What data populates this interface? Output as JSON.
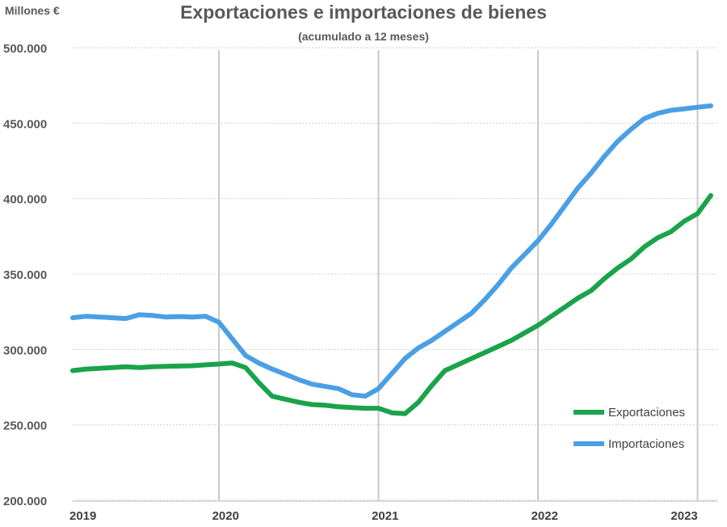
{
  "chart_data": {
    "type": "line",
    "title": "Exportaciones e importaciones de bienes",
    "subtitle": "(acumulado a 12 meses)",
    "ylabel": "Millones €",
    "xlabel": "",
    "ylim": [
      200000,
      500000
    ],
    "yticks": [
      200000,
      250000,
      300000,
      350000,
      400000,
      450000,
      500000
    ],
    "ytick_labels": [
      "200.000",
      "250.000",
      "300.000",
      "350.000",
      "400.000",
      "450.000",
      "500.000"
    ],
    "xlim": [
      0,
      48
    ],
    "year_labels": [
      {
        "label": "2019",
        "x": 0
      },
      {
        "label": "2020",
        "x": 11.5
      },
      {
        "label": "2021",
        "x": 23.5
      },
      {
        "label": "2022",
        "x": 35.5
      },
      {
        "label": "2023",
        "x": 46.0
      }
    ],
    "vertical_gridlines_x": [
      11,
      23,
      35,
      47
    ],
    "horizontal_grid": true,
    "legend_position": "bottom-right",
    "series": [
      {
        "name": "Exportaciones",
        "color": "#1aa34a",
        "x": [
          0,
          1,
          2,
          3,
          4,
          5,
          6,
          7,
          8,
          9,
          10,
          11,
          12,
          13,
          14,
          15,
          16,
          17,
          18,
          19,
          20,
          21,
          22,
          23,
          24,
          25,
          26,
          27,
          28,
          29,
          30,
          31,
          32,
          33,
          34,
          35,
          36,
          37,
          38,
          39,
          40,
          41,
          42,
          43,
          44,
          45,
          46,
          47,
          48
        ],
        "values": [
          286000,
          287000,
          287500,
          288000,
          288500,
          288000,
          288500,
          288800,
          289000,
          289200,
          289800,
          290300,
          291000,
          288000,
          278000,
          269000,
          267000,
          265000,
          263500,
          263000,
          262000,
          261500,
          261000,
          261000,
          258000,
          257500,
          265000,
          276000,
          286000,
          290000,
          294000,
          298000,
          302000,
          306000,
          311000,
          316000,
          322000,
          328000,
          334000,
          339000,
          347000,
          354000,
          360000,
          368000,
          374000,
          378000,
          385000,
          390000,
          402000
        ]
      },
      {
        "name": "Importaciones",
        "color": "#4a9fe5",
        "x": [
          0,
          1,
          2,
          3,
          4,
          5,
          6,
          7,
          8,
          9,
          10,
          11,
          12,
          13,
          14,
          15,
          16,
          17,
          18,
          19,
          20,
          21,
          22,
          23,
          24,
          25,
          26,
          27,
          28,
          29,
          30,
          31,
          32,
          33,
          34,
          35,
          36,
          37,
          38,
          39,
          40,
          41,
          42,
          43,
          44,
          45,
          46,
          47,
          48
        ],
        "values": [
          321000,
          322000,
          321500,
          321000,
          320500,
          323000,
          322500,
          321500,
          321800,
          321500,
          322000,
          318000,
          307000,
          296000,
          291000,
          287000,
          283500,
          280000,
          277000,
          275500,
          274000,
          270000,
          269000,
          274000,
          284000,
          294000,
          301000,
          306000,
          312000,
          318000,
          324000,
          333000,
          343000,
          354000,
          363000,
          372000,
          383000,
          395000,
          407000,
          417000,
          428000,
          438000,
          446000,
          453000,
          456500,
          458500,
          459500,
          460500,
          461500
        ]
      }
    ]
  }
}
